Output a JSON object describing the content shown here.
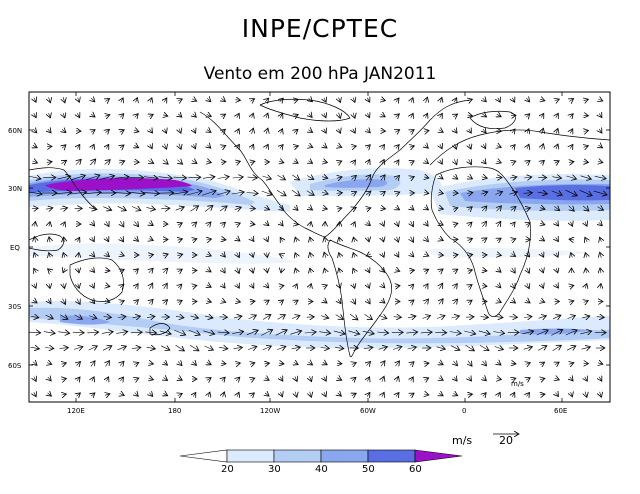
{
  "header": {
    "title": "INPE/CPTEC",
    "subtitle": "Vento em 200 hPa JAN2011"
  },
  "map": {
    "variable": "wind speed and direction at 200 hPa",
    "lat_labels": [
      "60N",
      "30N",
      "EQ",
      "30S",
      "60S"
    ],
    "lon_labels": [
      "120E",
      "180",
      "120W",
      "60W",
      "0",
      "60E"
    ],
    "inset_unit": "m/s"
  },
  "colorbar": {
    "levels": [
      "20",
      "30",
      "40",
      "50",
      "60"
    ],
    "colors": [
      "#ffffff",
      "#dbeafe",
      "#b4cdf5",
      "#8aa6ee",
      "#5a6ee3",
      "#9b10c9"
    ]
  },
  "reference_vector": {
    "unit": "m/s",
    "value": "20"
  }
}
